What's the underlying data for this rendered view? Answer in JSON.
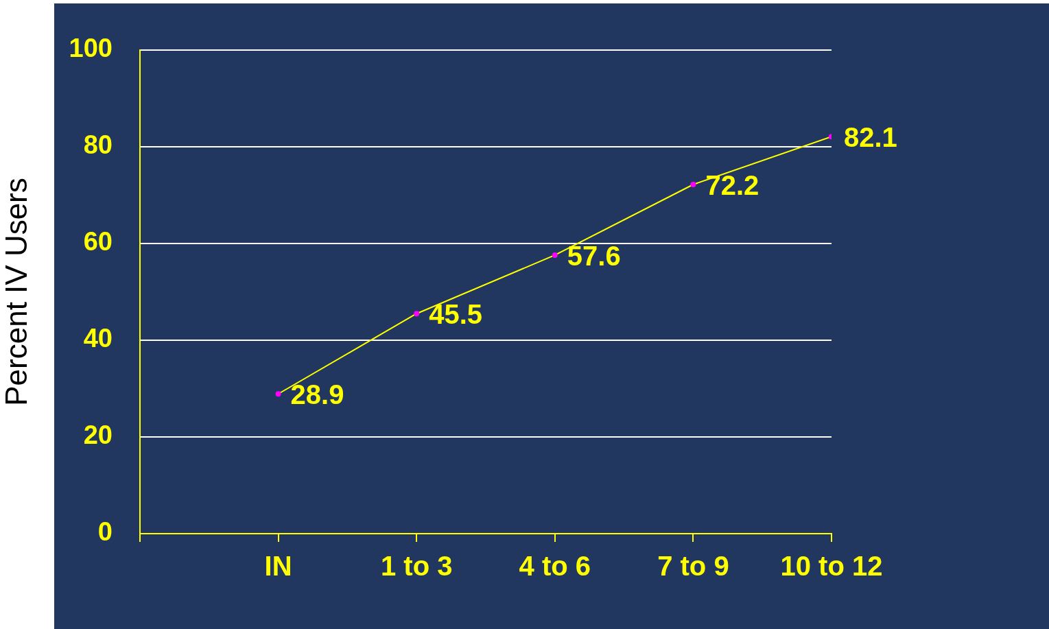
{
  "chart_data": {
    "type": "line",
    "ylabel": "Percent IV Users",
    "categories": [
      "IN",
      "1 to 3",
      "4 to 6",
      "7 to 9",
      "10 to 12"
    ],
    "series": [
      {
        "color": "#ffff00",
        "values": [
          28.9,
          45.5,
          57.6,
          72.2,
          82.1
        ]
      }
    ],
    "ylim": [
      0,
      100
    ],
    "yticks": [
      0,
      20,
      40,
      60,
      80,
      100
    ],
    "grid": "y",
    "marker": "circle",
    "line_style": "solid",
    "data_labels": true,
    "legend": false
  }
}
